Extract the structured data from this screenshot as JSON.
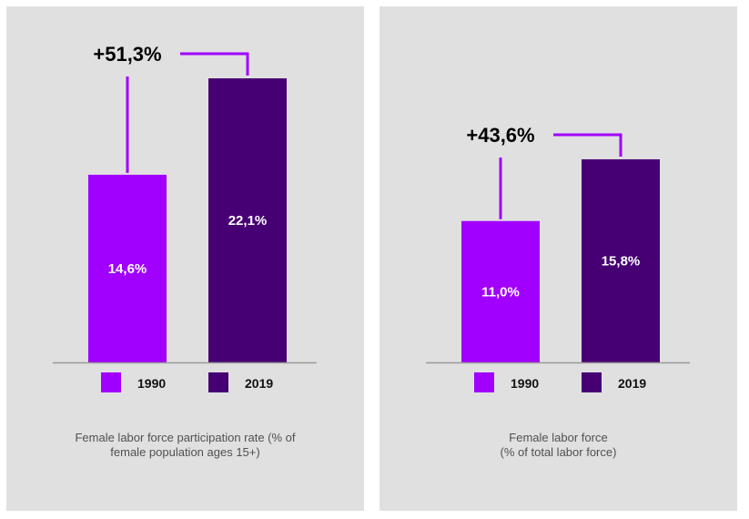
{
  "colors": {
    "background": "#e0e0e0",
    "series_1990": "#a100ff",
    "series_2019": "#460073",
    "connector": "#a100ff",
    "baseline": "#9a9a9a",
    "bar_label": "#ffffff",
    "change_label": "#000000",
    "legend_text": "#111111",
    "caption": "#505050"
  },
  "chart_data": [
    {
      "type": "bar",
      "title": "",
      "categories": [
        "1990",
        "2019"
      ],
      "values": [
        14.6,
        22.1
      ],
      "value_labels": [
        "14,6%",
        "22,1%"
      ],
      "change_label": "+51,3%",
      "ylim": [
        0,
        26
      ],
      "unit": "%",
      "legend": [
        {
          "label": "1990"
        },
        {
          "label": "2019"
        }
      ],
      "legend_placement": "bottom",
      "grid": false,
      "caption_lines": [
        "Female labor force participation rate (% of",
        "female population ages 15+)"
      ]
    },
    {
      "type": "bar",
      "title": "",
      "categories": [
        "1990",
        "2019"
      ],
      "values": [
        11.0,
        15.8
      ],
      "value_labels": [
        "11,0%",
        "15,8%"
      ],
      "change_label": "+43,6%",
      "ylim": [
        0,
        26
      ],
      "unit": "%",
      "legend": [
        {
          "label": "1990"
        },
        {
          "label": "2019"
        }
      ],
      "legend_placement": "bottom",
      "grid": false,
      "caption_lines": [
        "Female labor force",
        "(% of total labor force)"
      ]
    }
  ]
}
